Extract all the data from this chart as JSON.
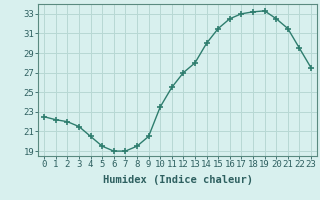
{
  "x": [
    0,
    1,
    2,
    3,
    4,
    5,
    6,
    7,
    8,
    9,
    10,
    11,
    12,
    13,
    14,
    15,
    16,
    17,
    18,
    19,
    20,
    21,
    22,
    23
  ],
  "y": [
    22.5,
    22.2,
    22.0,
    21.5,
    20.5,
    19.5,
    19.0,
    19.0,
    19.5,
    20.5,
    23.5,
    25.5,
    27.0,
    28.0,
    30.0,
    31.5,
    32.5,
    33.0,
    33.2,
    33.3,
    32.5,
    31.5,
    29.5,
    27.5
  ],
  "line_color": "#2e7d6e",
  "marker": "+",
  "marker_size": 4,
  "marker_lw": 1.2,
  "line_width": 1.0,
  "bg_color": "#d8f0ee",
  "grid_color": "#b8d8d4",
  "xlabel": "Humidex (Indice chaleur)",
  "ylim": [
    18.5,
    34.0
  ],
  "xlim": [
    -0.5,
    23.5
  ],
  "yticks": [
    19,
    21,
    23,
    25,
    27,
    29,
    31,
    33
  ],
  "xticks": [
    0,
    1,
    2,
    3,
    4,
    5,
    6,
    7,
    8,
    9,
    10,
    11,
    12,
    13,
    14,
    15,
    16,
    17,
    18,
    19,
    20,
    21,
    22,
    23
  ],
  "tick_color": "#2e6060",
  "xlabel_fontsize": 7.5,
  "tick_fontsize": 6.5,
  "spine_color": "#5a8a80"
}
